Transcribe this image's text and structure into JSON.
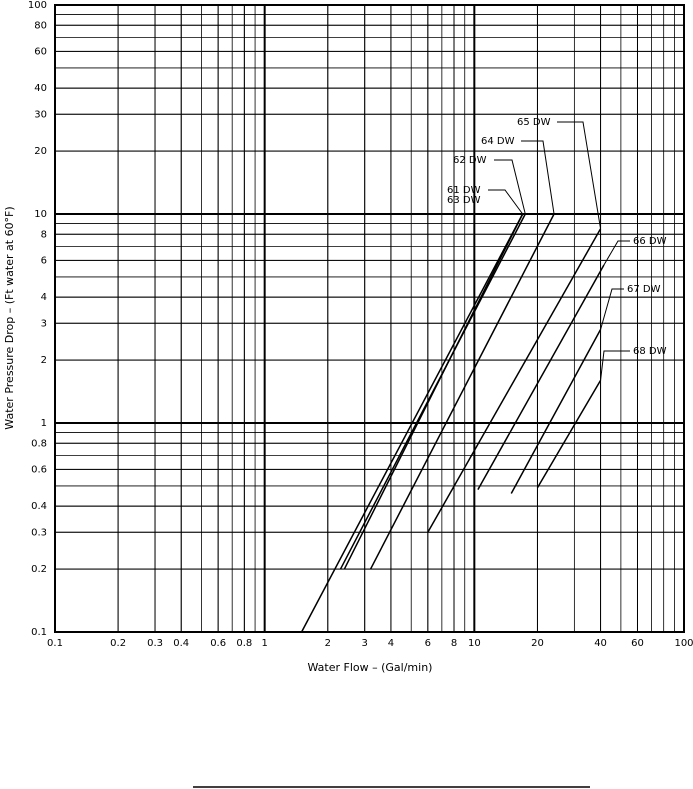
{
  "chart_data": {
    "type": "line",
    "xlabel": "Water Flow – (Gal/min)",
    "ylabel": "Water Pressure Drop – (Ft water at 60°F)",
    "xlog": true,
    "ylog": true,
    "grid": true,
    "xlim": [
      0.1,
      100
    ],
    "ylim": [
      0.1,
      100
    ],
    "xticks": [
      0.1,
      0.2,
      0.3,
      0.4,
      0.6,
      0.8,
      1,
      2,
      3,
      4,
      6,
      8,
      10,
      20,
      40,
      60,
      100
    ],
    "yticks": [
      0.1,
      0.2,
      0.3,
      0.4,
      0.6,
      0.8,
      1,
      2,
      3,
      4,
      6,
      8,
      10,
      20,
      30,
      40,
      60,
      80,
      100
    ],
    "series": [
      {
        "name": "61 DW",
        "color": "#000000",
        "x": [
          1.5,
          17
        ],
        "values": [
          0.1,
          10
        ]
      },
      {
        "name": "62 DW",
        "color": "#000000",
        "x": [
          2.3,
          17.5
        ],
        "values": [
          0.2,
          10
        ]
      },
      {
        "name": "63 DW",
        "color": "#000000",
        "x": [
          2.4,
          17
        ],
        "values": [
          0.2,
          10
        ]
      },
      {
        "name": "64 DW",
        "color": "#000000",
        "x": [
          3.2,
          24
        ],
        "values": [
          0.2,
          10
        ]
      },
      {
        "name": "65 DW",
        "color": "#000000",
        "x": [
          6,
          40
        ],
        "values": [
          0.3,
          8.5
        ]
      },
      {
        "name": "66 DW",
        "color": "#000000",
        "x": [
          10.4,
          41.5
        ],
        "values": [
          0.48,
          5.7
        ]
      },
      {
        "name": "67 DW",
        "color": "#000000",
        "x": [
          15,
          40
        ],
        "values": [
          0.46,
          2.8
        ]
      },
      {
        "name": "68 DW",
        "color": "#000000",
        "x": [
          20,
          40
        ],
        "values": [
          0.49,
          1.6
        ]
      }
    ]
  }
}
